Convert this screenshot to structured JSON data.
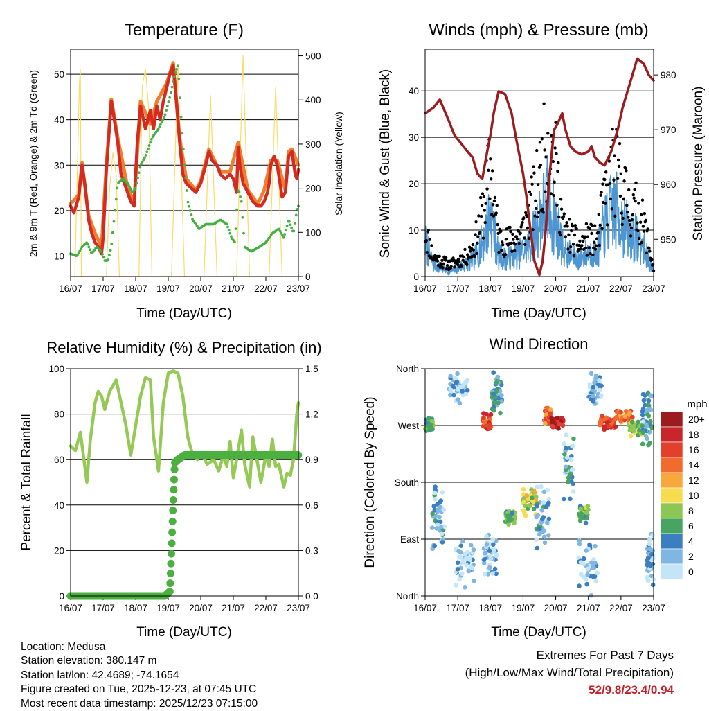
{
  "chart_data": [
    {
      "type": "line",
      "title": "Temperature (F)",
      "xlabel": "Time (Day/UTC)",
      "ylabel": "2m & 9m T (Red, Orange) & 2m Td (Green)",
      "y2label": "Solar Insolation (Yellow)",
      "x_ticks": [
        "16/07",
        "17/07",
        "18/07",
        "19/07",
        "20/07",
        "21/07",
        "22/07",
        "23/07"
      ],
      "xlim": [
        0,
        7
      ],
      "ylim": [
        5.5,
        55.5
      ],
      "y_ticks": [
        10,
        20,
        30,
        40,
        50
      ],
      "y2lim": [
        0,
        515
      ],
      "y2_ticks": [
        0,
        100,
        200,
        300,
        400,
        500
      ],
      "grid": true,
      "colors": {
        "t2m": "#d42a20",
        "t9m": "#f07e2c",
        "td": "#44b044",
        "solar": "#f7dc6a"
      },
      "series": [
        {
          "name": "2m T",
          "x": [
            0,
            0.1,
            0.25,
            0.35,
            0.45,
            0.55,
            0.65,
            0.75,
            0.85,
            0.95,
            1.0,
            1.1,
            1.25,
            1.3,
            1.45,
            1.55,
            1.75,
            1.85,
            1.95,
            2.05,
            2.15,
            2.3,
            2.45,
            2.55,
            2.65,
            2.75,
            2.85,
            2.95,
            3.05,
            3.15,
            3.25,
            3.35,
            3.45,
            3.55,
            3.7,
            3.85,
            4.0,
            4.15,
            4.25,
            4.35,
            4.5,
            4.6,
            4.75,
            4.9,
            5.0,
            5.1,
            5.15,
            5.2,
            5.3,
            5.45,
            5.6,
            5.75,
            5.85,
            5.95,
            6.05,
            6.1,
            6.15,
            6.25,
            6.35,
            6.5,
            6.6,
            6.7,
            6.8,
            6.9,
            6.95,
            7.0
          ],
          "values": [
            21,
            19.5,
            23,
            30,
            25,
            18,
            15,
            13,
            12,
            10.5,
            14,
            29,
            44,
            42,
            35,
            28,
            24,
            22,
            21,
            35,
            43,
            38,
            42,
            38,
            43,
            40,
            44,
            47,
            50,
            52,
            44,
            35,
            28,
            26,
            25,
            24,
            26,
            30,
            33,
            31,
            30,
            28,
            27,
            28,
            27,
            24,
            34,
            30,
            26,
            24,
            22,
            21,
            21,
            22,
            24,
            26,
            30,
            32,
            30,
            23,
            24,
            32,
            33,
            28,
            27,
            29
          ]
        },
        {
          "name": "9m T",
          "x": [
            0,
            0.25,
            0.35,
            0.55,
            0.75,
            0.95,
            1.1,
            1.25,
            1.45,
            1.75,
            1.95,
            2.15,
            2.45,
            2.65,
            2.95,
            3.15,
            3.35,
            3.55,
            3.85,
            4.0,
            4.25,
            4.6,
            4.9,
            5.15,
            5.45,
            5.75,
            5.95,
            6.15,
            6.35,
            6.6,
            6.7,
            6.8,
            7.0
          ],
          "values": [
            21.5,
            23.5,
            30.5,
            19,
            15,
            12,
            30,
            44.5,
            36,
            25,
            22,
            44,
            39,
            44,
            48,
            52.5,
            36,
            27,
            24.5,
            26.5,
            33.5,
            28.5,
            28.5,
            35,
            24.5,
            21.5,
            24.5,
            31,
            31,
            24.5,
            33,
            33.5,
            30
          ]
        },
        {
          "name": "2m Td",
          "x": [
            0,
            0.2,
            0.35,
            0.5,
            0.65,
            0.8,
            0.95,
            1.05,
            1.15,
            1.25,
            1.45,
            1.6,
            1.75,
            1.9,
            2.0,
            2.15,
            2.3,
            2.5,
            2.7,
            2.9,
            3.05,
            3.2,
            3.3,
            3.4,
            3.5,
            3.6,
            3.75,
            3.95,
            4.15,
            4.4,
            4.6,
            4.8,
            4.95,
            5.05,
            5.15,
            5.25,
            5.35,
            5.55,
            5.8,
            6.0,
            6.2,
            6.4,
            6.55,
            6.7,
            6.85,
            6.95,
            7.0
          ],
          "values": [
            10.5,
            10,
            12,
            13,
            10.5,
            12,
            11,
            9,
            9,
            12,
            26,
            27,
            26,
            24,
            25,
            30,
            32,
            36,
            38,
            41,
            45,
            50,
            52,
            40,
            30,
            22,
            18,
            16,
            17,
            17,
            18,
            17,
            14,
            13,
            25,
            22,
            12,
            11,
            12,
            13,
            15,
            16,
            14,
            18,
            15,
            20,
            21
          ]
        },
        {
          "name": "Solar Insolation",
          "axis": "y2",
          "x": [
            0.13,
            0.27,
            0.3,
            0.33,
            0.5,
            1.1,
            1.2,
            1.3,
            1.4,
            1.5,
            2.1,
            2.2,
            2.3,
            2.4,
            2.5,
            3.1,
            3.3,
            3.5,
            4.1,
            4.3,
            4.5,
            5.1,
            5.3,
            5.5,
            6.1,
            6.3,
            6.5
          ],
          "values": [
            0,
            440,
            470,
            0,
            0,
            0,
            200,
            280,
            230,
            0,
            0,
            430,
            470,
            380,
            0,
            0,
            480,
            0,
            0,
            410,
            0,
            0,
            500,
            0,
            0,
            430,
            0
          ]
        }
      ]
    },
    {
      "type": "line",
      "title": "Winds (mph) & Pressure (mb)",
      "xlabel": "Time (Day/UTC)",
      "ylabel": "Sonic Wind & Gust (Blue, Black)",
      "y2label": "Station Pressure (Maroon)",
      "x_ticks": [
        "16/07",
        "17/07",
        "18/07",
        "19/07",
        "20/07",
        "21/07",
        "22/07",
        "23/07"
      ],
      "xlim": [
        0,
        7
      ],
      "ylim": [
        0,
        49
      ],
      "y_ticks": [
        0,
        10,
        20,
        30,
        40
      ],
      "y2lim": [
        943.2,
        984.7
      ],
      "y2_ticks": [
        950,
        960,
        970,
        980
      ],
      "grid": true,
      "colors": {
        "wind": "#4d96d1",
        "gust": "#000000",
        "pressure": "#9b1b1e"
      },
      "series": [
        {
          "name": "Sonic Wind",
          "x": [
            0,
            0.25,
            0.5,
            0.75,
            1.0,
            1.25,
            1.5,
            1.75,
            2.0,
            2.25,
            2.5,
            2.75,
            3.0,
            3.25,
            3.5,
            3.75,
            4.0,
            4.25,
            4.5,
            4.75,
            5.0,
            5.25,
            5.5,
            5.75,
            6.0,
            6.25,
            6.5,
            6.75,
            7.0
          ],
          "values": [
            8,
            3,
            2,
            1,
            2,
            3,
            4,
            8,
            15,
            5,
            4,
            5,
            6,
            8,
            14,
            18,
            13,
            6,
            5,
            4,
            6,
            5,
            12,
            16,
            14,
            10,
            9,
            6,
            1
          ]
        },
        {
          "name": "Gust",
          "x": [
            0,
            0.25,
            0.5,
            0.75,
            1.0,
            1.25,
            1.5,
            1.75,
            2.0,
            2.25,
            2.5,
            2.75,
            3.0,
            3.25,
            3.5,
            3.75,
            4.0,
            4.25,
            4.5,
            4.75,
            5.0,
            5.25,
            5.5,
            5.75,
            6.0,
            6.25,
            6.5,
            6.75,
            7.0
          ],
          "values": [
            12,
            5,
            4,
            3,
            4,
            5,
            8,
            16,
            28,
            10,
            9,
            10,
            12,
            18,
            25,
            36,
            28,
            12,
            10,
            8,
            10,
            9,
            20,
            28,
            25,
            18,
            17,
            12,
            2
          ]
        },
        {
          "name": "Station Pressure",
          "axis": "y2",
          "x": [
            0,
            0.25,
            0.45,
            0.7,
            0.9,
            1.1,
            1.3,
            1.45,
            1.6,
            1.75,
            1.9,
            2.0,
            2.1,
            2.25,
            2.45,
            2.65,
            2.8,
            3.0,
            3.1,
            3.2,
            3.35,
            3.5,
            3.6,
            3.7,
            3.8,
            3.95,
            4.05,
            4.2,
            4.3,
            4.45,
            4.6,
            4.8,
            5.0,
            5.1,
            5.2,
            5.35,
            5.5,
            5.7,
            5.9,
            6.05,
            6.15,
            6.35,
            6.5,
            6.7,
            6.85,
            7.0
          ],
          "values": [
            973,
            974,
            975.5,
            972,
            969,
            967.5,
            966,
            965,
            962,
            961,
            966,
            969,
            973,
            977,
            976.5,
            973,
            968,
            962,
            958,
            953,
            946,
            943.5,
            946,
            952,
            961,
            970,
            971,
            973,
            970,
            967,
            966,
            965.5,
            966,
            967,
            965,
            964,
            963.5,
            966,
            970,
            974,
            976,
            980,
            983,
            982,
            980,
            979
          ]
        }
      ]
    },
    {
      "type": "line",
      "title": "Relative Humidity (%) & Precipitation (in)",
      "xlabel": "Time (Day/UTC)",
      "ylabel": "Percent & Total Rainfall",
      "x_ticks": [
        "16/07",
        "17/07",
        "18/07",
        "19/07",
        "20/07",
        "21/07",
        "22/07",
        "23/07"
      ],
      "xlim": [
        0,
        7
      ],
      "ylim": [
        0,
        100
      ],
      "y_ticks": [
        0,
        20,
        40,
        60,
        80,
        100
      ],
      "y2lim": [
        0,
        1.5
      ],
      "y2_ticks": [
        "0.0",
        "0.3",
        "0.6",
        "0.9",
        "1.2",
        "1.5"
      ],
      "grid": true,
      "colors": {
        "rh": "#93c954",
        "precip": "#4cb040"
      },
      "series": [
        {
          "name": "Relative Humidity",
          "x": [
            0,
            0.15,
            0.3,
            0.5,
            0.6,
            0.75,
            0.85,
            0.95,
            1.05,
            1.2,
            1.4,
            1.55,
            1.7,
            1.85,
            2.0,
            2.15,
            2.3,
            2.45,
            2.55,
            2.7,
            2.85,
            3.0,
            3.15,
            3.3,
            3.45,
            3.6,
            3.75,
            3.9,
            4.0,
            4.2,
            4.4,
            4.55,
            4.7,
            4.8,
            4.9,
            5.0,
            5.1,
            5.25,
            5.35,
            5.5,
            5.6,
            5.7,
            5.85,
            6.0,
            6.1,
            6.2,
            6.3,
            6.4,
            6.55,
            6.65,
            6.75,
            6.85,
            6.95,
            7.0
          ],
          "values": [
            66,
            64,
            72,
            50,
            68,
            85,
            90,
            88,
            82,
            90,
            95,
            85,
            75,
            62,
            75,
            88,
            96,
            95,
            70,
            55,
            85,
            98,
            99,
            98,
            88,
            70,
            62,
            60,
            63,
            58,
            60,
            55,
            62,
            57,
            68,
            52,
            60,
            73,
            58,
            48,
            70,
            62,
            50,
            62,
            57,
            69,
            57,
            58,
            48,
            54,
            53,
            60,
            80,
            85
          ]
        },
        {
          "name": "Total Precipitation",
          "axis": "y2",
          "x": [
            0,
            2.9,
            3.05,
            3.1,
            3.15,
            3.2,
            3.3,
            3.5,
            7.0
          ],
          "values": [
            0,
            0,
            0.03,
            0.3,
            0.6,
            0.88,
            0.9,
            0.93,
            0.93
          ]
        }
      ]
    },
    {
      "type": "scatter",
      "title": "Wind Direction",
      "xlabel": "Time (Day/UTC)",
      "ylabel": "Direction (Colored By Speed)",
      "x_ticks": [
        "16/07",
        "17/07",
        "18/07",
        "19/07",
        "20/07",
        "21/07",
        "22/07",
        "23/07"
      ],
      "xlim": [
        0,
        7
      ],
      "y_ticks": [
        "North",
        "East",
        "South",
        "West",
        "North"
      ],
      "ylim": [
        0,
        360
      ],
      "grid": true,
      "colorbar": {
        "title": "mph",
        "labels": [
          "20+",
          "18",
          "16",
          "14",
          "12",
          "10",
          "8",
          "6",
          "4",
          "2",
          "0"
        ],
        "colors": [
          "#9b1b1e",
          "#c8262a",
          "#e2402d",
          "#f26a2e",
          "#f8a73d",
          "#f7dc4e",
          "#8cc753",
          "#48a461",
          "#3c7fc0",
          "#7fb6e2",
          "#c3e5f7"
        ]
      },
      "clusters": [
        {
          "x_center": 0.1,
          "x_spread": 0.15,
          "dir_center": 270,
          "dir_spread": 12,
          "speed": 6
        },
        {
          "x_center": 0.4,
          "x_spread": 0.2,
          "dir_center": 120,
          "dir_spread": 60,
          "speed": 3
        },
        {
          "x_center": 1.0,
          "x_spread": 0.3,
          "dir_center": 330,
          "dir_spread": 30,
          "speed": 1
        },
        {
          "x_center": 1.2,
          "x_spread": 0.3,
          "dir_center": 50,
          "dir_spread": 45,
          "speed": 1
        },
        {
          "x_center": 1.9,
          "x_spread": 0.12,
          "dir_center": 275,
          "dir_spread": 15,
          "speed": 15
        },
        {
          "x_center": 2.2,
          "x_spread": 0.15,
          "dir_center": 320,
          "dir_spread": 35,
          "speed": 4
        },
        {
          "x_center": 2.0,
          "x_spread": 0.2,
          "dir_center": 60,
          "dir_spread": 45,
          "speed": 2
        },
        {
          "x_center": 2.6,
          "x_spread": 0.15,
          "dir_center": 125,
          "dir_spread": 15,
          "speed": 6
        },
        {
          "x_center": 3.2,
          "x_spread": 0.2,
          "dir_center": 150,
          "dir_spread": 25,
          "speed": 9
        },
        {
          "x_center": 3.6,
          "x_spread": 0.2,
          "dir_center": 120,
          "dir_spread": 60,
          "speed": 3
        },
        {
          "x_center": 3.75,
          "x_spread": 0.1,
          "dir_center": 285,
          "dir_spread": 15,
          "speed": 14
        },
        {
          "x_center": 4.05,
          "x_spread": 0.18,
          "dir_center": 275,
          "dir_spread": 10,
          "speed": 19
        },
        {
          "x_center": 4.4,
          "x_spread": 0.15,
          "dir_center": 200,
          "dir_spread": 60,
          "speed": 3
        },
        {
          "x_center": 4.85,
          "x_spread": 0.15,
          "dir_center": 130,
          "dir_spread": 15,
          "speed": 7
        },
        {
          "x_center": 5.0,
          "x_spread": 0.3,
          "dir_center": 50,
          "dir_spread": 50,
          "speed": 2
        },
        {
          "x_center": 5.2,
          "x_spread": 0.2,
          "dir_center": 330,
          "dir_spread": 30,
          "speed": 2
        },
        {
          "x_center": 5.6,
          "x_spread": 0.25,
          "dir_center": 275,
          "dir_spread": 12,
          "speed": 16
        },
        {
          "x_center": 6.1,
          "x_spread": 0.25,
          "dir_center": 285,
          "dir_spread": 12,
          "speed": 14
        },
        {
          "x_center": 6.45,
          "x_spread": 0.2,
          "dir_center": 265,
          "dir_spread": 15,
          "speed": 8
        },
        {
          "x_center": 6.8,
          "x_spread": 0.15,
          "dir_center": 280,
          "dir_spread": 50,
          "speed": 3
        },
        {
          "x_center": 6.9,
          "x_spread": 0.1,
          "dir_center": 60,
          "dir_spread": 50,
          "speed": 2
        }
      ]
    }
  ],
  "info": {
    "location": "Location: Medusa",
    "elevation": "Station elevation: 380.147 m",
    "latlon": "Station lat/lon: 42.4689; -74.1654",
    "created": "Figure created on Tue, 2025-12-23, at 07:45 UTC",
    "recent": "Most recent data timestamp: 2025/12/23 07:15:00"
  },
  "extremes": {
    "heading": "Extremes For Past 7 Days",
    "subheading": "(High/Low/Max Wind/Total Precipitation)",
    "values": "52/9.8/23.4/0.94"
  }
}
